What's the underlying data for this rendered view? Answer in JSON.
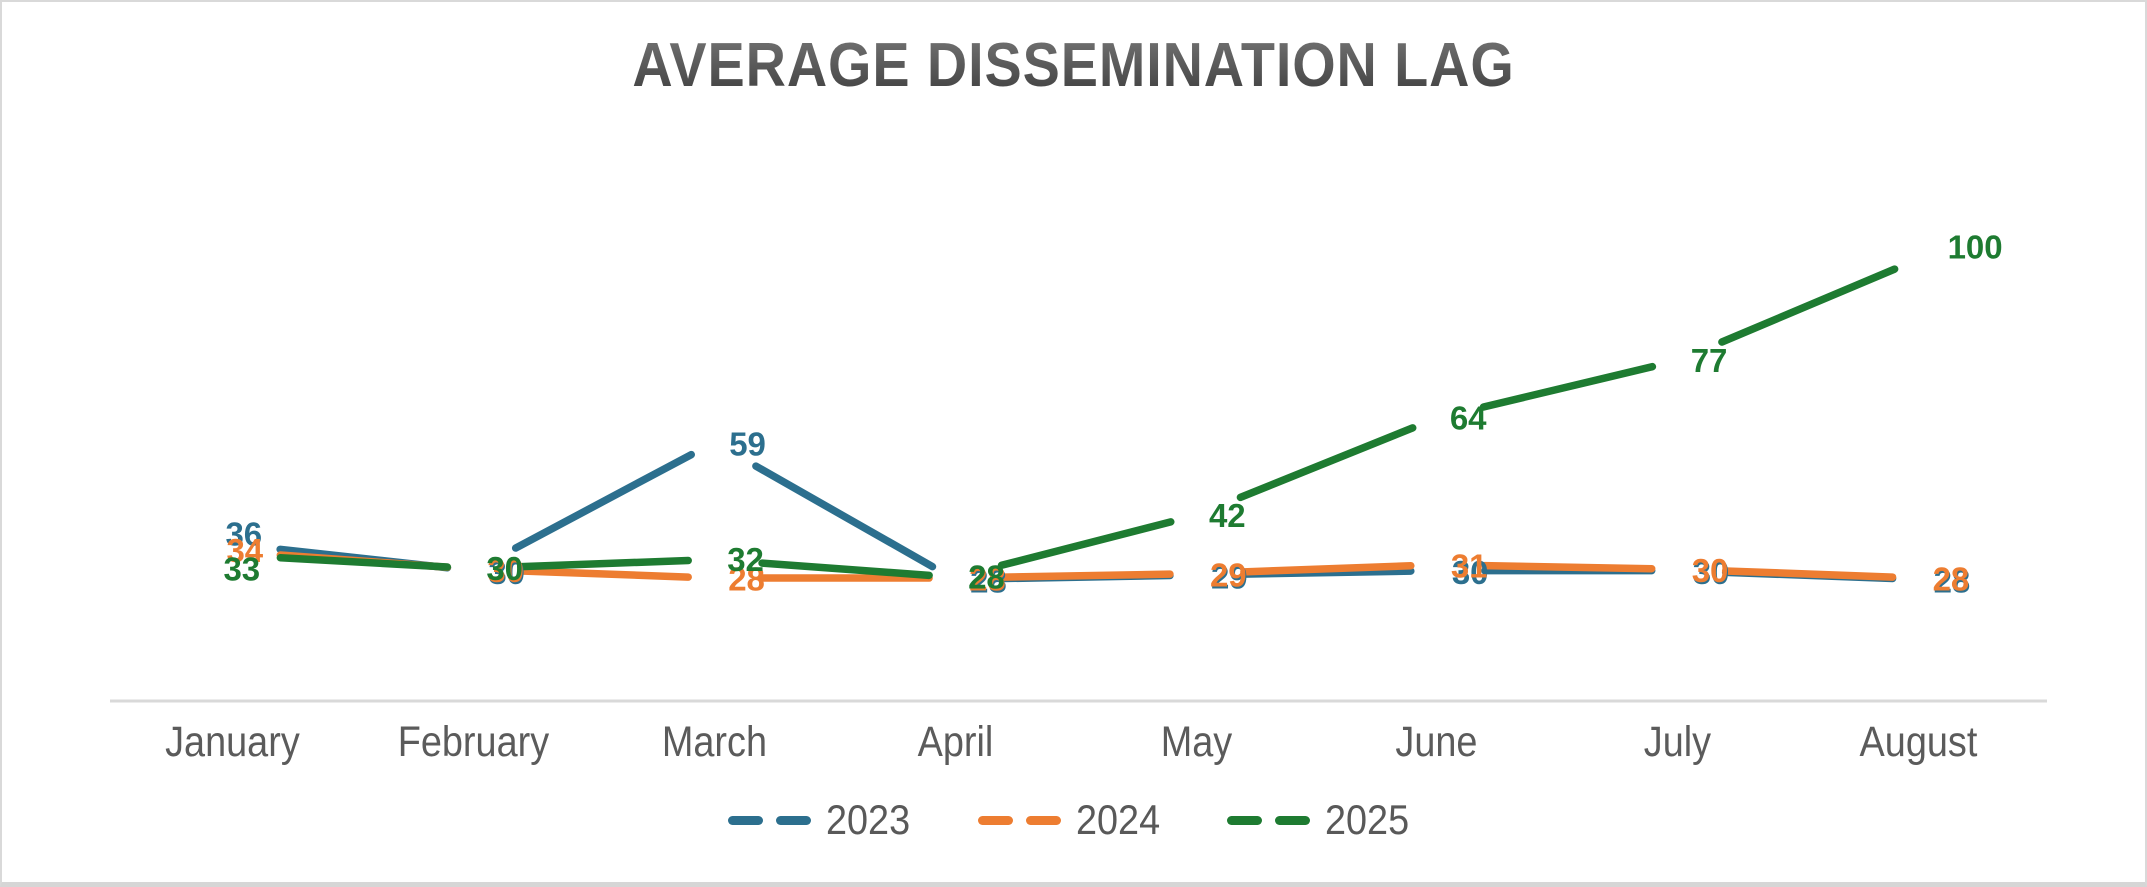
{
  "chart_data": {
    "type": "line",
    "title": "AVERAGE DISSEMINATION LAG",
    "categories": [
      "January",
      "February",
      "March",
      "April",
      "May",
      "June",
      "July",
      "August"
    ],
    "series": [
      {
        "name": "2023",
        "color": "#2C6F8E",
        "values": [
          36,
          30,
          59,
          28,
          29,
          30,
          30,
          28
        ]
      },
      {
        "name": "2024",
        "color": "#ED7D31",
        "values": [
          34,
          30,
          28,
          28,
          29,
          31,
          30,
          28
        ]
      },
      {
        "name": "2025",
        "color": "#1E7B31",
        "values": [
          33,
          30,
          32,
          28,
          42,
          64,
          77,
          100
        ]
      }
    ],
    "line_style": "dashed",
    "data_labels": true,
    "label_position": "right",
    "legend_position": "bottom",
    "gridlines": false,
    "value_axis": {
      "visible": false,
      "min": 0
    },
    "category_axis": {
      "line_color": "#D9D9D9",
      "label_color": "#5b5b5b"
    }
  },
  "styles": {
    "title_color_top": "#757575",
    "title_color_bottom": "#3d3d3d",
    "background": "#ffffff",
    "border_color": "#d9d9d9"
  }
}
